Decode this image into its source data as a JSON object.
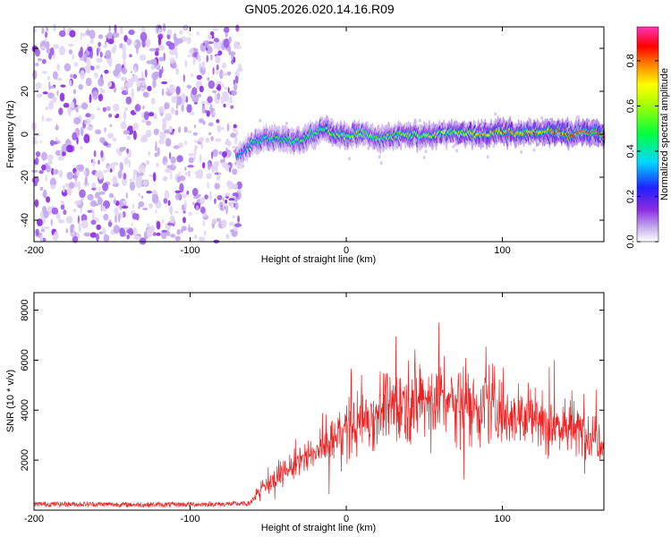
{
  "title": "GN05.2026.020.14.16.R09",
  "chart_data": [
    {
      "type": "heatmap",
      "xlabel": "Height of straight line (km)",
      "ylabel": "Frequency (Hz)",
      "xlim": [
        -200,
        165
      ],
      "ylim": [
        -50,
        50
      ],
      "xticks": [
        -200,
        -100,
        0,
        100
      ],
      "yticks": [
        -40,
        -20,
        0,
        20,
        40
      ],
      "colorbar": {
        "label": "Normalized spectral amplitude",
        "range": [
          0,
          0.95
        ],
        "ticks": [
          0.0,
          0.2,
          0.4,
          0.6,
          0.8
        ]
      },
      "noise_region_x": [
        -200,
        -70
      ],
      "ridge": {
        "x": [
          -70,
          -60,
          -50,
          -40,
          -30,
          -20,
          -15,
          -10,
          0,
          10,
          20,
          30,
          40,
          50,
          60,
          70,
          80,
          90,
          100,
          110,
          120,
          130,
          140,
          150,
          160,
          165
        ],
        "frequency": [
          -11,
          -4,
          -2,
          -2,
          -3,
          0,
          3,
          1,
          -1,
          1,
          -2,
          -1,
          0,
          -1,
          0,
          1,
          0,
          0,
          1,
          0,
          1,
          1,
          0,
          1,
          1,
          0
        ],
        "amplitude": [
          0.3,
          0.45,
          0.5,
          0.5,
          0.55,
          0.55,
          0.6,
          0.6,
          0.6,
          0.62,
          0.55,
          0.55,
          0.6,
          0.6,
          0.62,
          0.65,
          0.7,
          0.75,
          0.78,
          0.8,
          0.82,
          0.85,
          0.85,
          0.88,
          0.9,
          0.9
        ]
      }
    },
    {
      "type": "line",
      "xlabel": "Height of straight line (km)",
      "ylabel": "SNR (10 * v/v)",
      "xlim": [
        -200,
        165
      ],
      "ylim": [
        0,
        8700
      ],
      "xticks": [
        -200,
        -100,
        0,
        100
      ],
      "yticks": [
        2000,
        4000,
        6000,
        8000
      ],
      "color": "#ee2222",
      "series": [
        {
          "name": "SNR",
          "x": [
            -200,
            -180,
            -160,
            -140,
            -120,
            -100,
            -80,
            -62,
            -55,
            -45,
            -35,
            -25,
            -15,
            -5,
            5,
            15,
            25,
            35,
            45,
            55,
            65,
            75,
            85,
            95,
            105,
            115,
            125,
            135,
            145,
            155,
            165
          ],
          "values": [
            200,
            200,
            200,
            180,
            180,
            190,
            200,
            220,
            900,
            1300,
            1700,
            2100,
            2500,
            3000,
            3400,
            3800,
            4100,
            4300,
            4400,
            4500,
            4400,
            4300,
            4200,
            4100,
            3900,
            3700,
            3600,
            3400,
            3200,
            3100,
            2900
          ]
        }
      ]
    }
  ]
}
